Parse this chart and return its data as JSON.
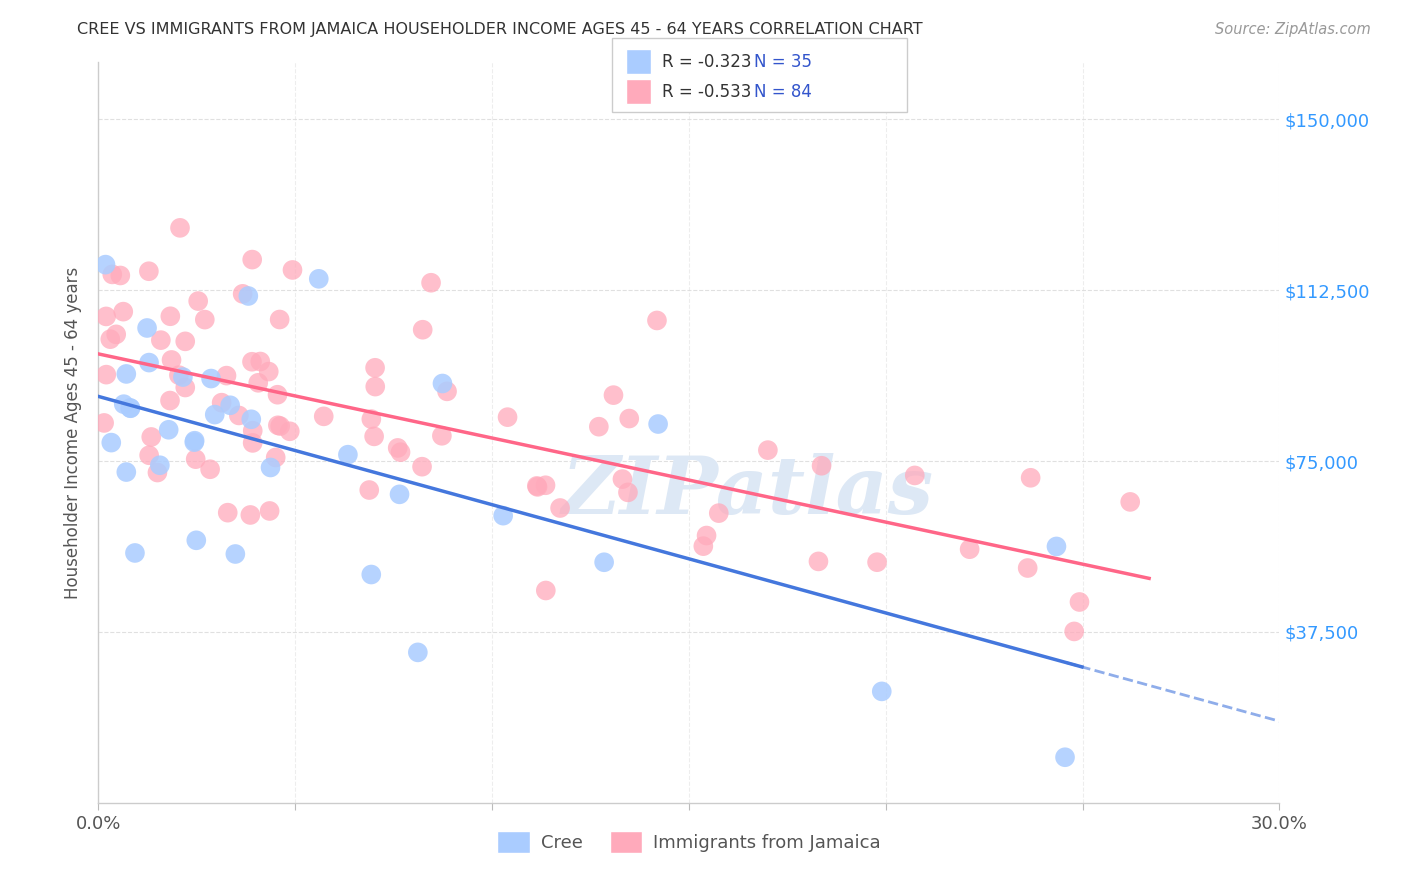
{
  "title": "CREE VS IMMIGRANTS FROM JAMAICA HOUSEHOLDER INCOME AGES 45 - 64 YEARS CORRELATION CHART",
  "source": "Source: ZipAtlas.com",
  "ylabel": "Householder Income Ages 45 - 64 years",
  "ytick_labels": [
    "$37,500",
    "$75,000",
    "$112,500",
    "$150,000"
  ],
  "ytick_values": [
    37500,
    75000,
    112500,
    150000
  ],
  "ylim": [
    0,
    162500
  ],
  "xlim": [
    0.0,
    0.3
  ],
  "watermark_text": "ZIPatlas",
  "legend_cree_R": "R = -0.323",
  "legend_cree_N": "N = 35",
  "legend_jamaica_R": "R = -0.533",
  "legend_jamaica_N": "N = 84",
  "cree_color": "#aaccff",
  "jamaica_color": "#ffaabb",
  "cree_line_color": "#4477dd",
  "jamaica_line_color": "#ff6688",
  "background_color": "#ffffff",
  "grid_color": "#dddddd",
  "title_color": "#333333",
  "source_color": "#999999",
  "ytick_color": "#3399ff",
  "legend_text_R_color": "#cc2244",
  "legend_text_N_color": "#3355cc",
  "watermark_color": "#dde8f5"
}
